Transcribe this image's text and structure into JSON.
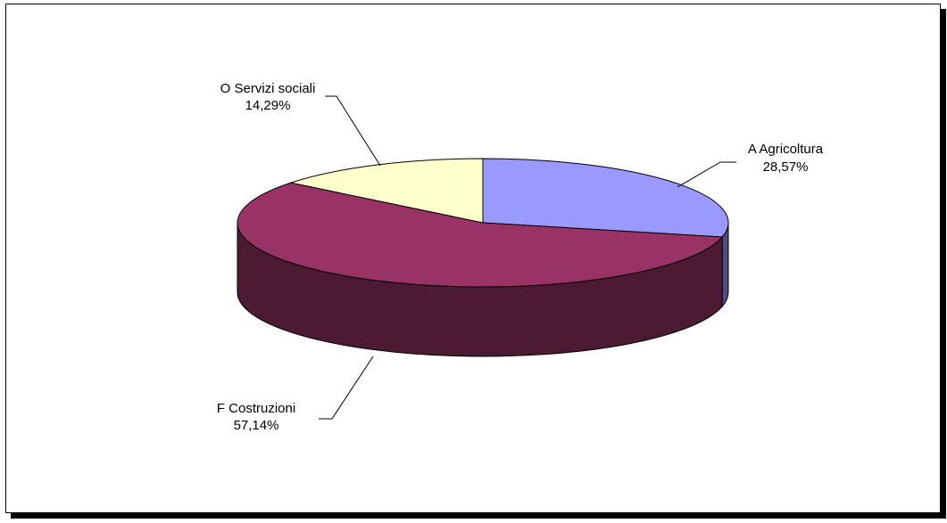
{
  "chart_data": {
    "type": "pie",
    "style": "3d",
    "slices": [
      {
        "code": "A",
        "name": "Agricoltura",
        "label": "A  Agricoltura",
        "value": 28.57,
        "percent_label": "28,57%",
        "color": "#9999ff",
        "side_color": "#4d4d80"
      },
      {
        "code": "F",
        "name": "Costruzioni",
        "label": "F  Costruzioni",
        "value": 57.14,
        "percent_label": "57,14%",
        "color": "#993366",
        "side_color": "#4d1a33"
      },
      {
        "code": "O",
        "name": "Servizi sociali",
        "label": "O  Servizi sociali",
        "value": 14.29,
        "percent_label": "14,29%",
        "color": "#ffffcc",
        "side_color": "#808066"
      }
    ]
  }
}
